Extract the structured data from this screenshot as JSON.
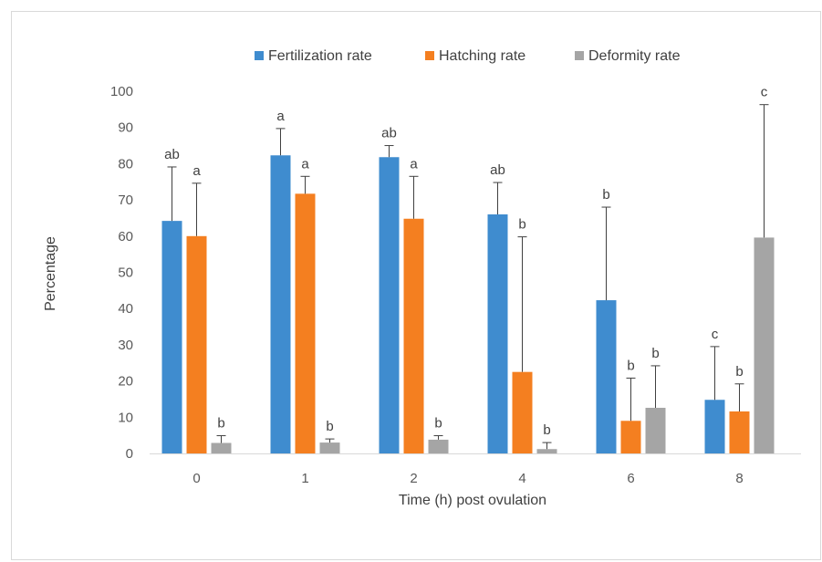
{
  "chart_data": {
    "type": "bar",
    "title": "",
    "xlabel": "Time (h) post ovulation",
    "ylabel": "Percentage",
    "ylim": [
      0,
      100
    ],
    "yticks": [
      "0",
      "10",
      "20",
      "30",
      "40",
      "50",
      "60",
      "70",
      "80",
      "90",
      "100"
    ],
    "categories": [
      "0",
      "1",
      "2",
      "4",
      "6",
      "8"
    ],
    "legend_position": "top",
    "grid": false,
    "series": [
      {
        "name": "Fertilization rate",
        "color": "#3f8ccf",
        "values": [
          64.2,
          82.3,
          81.8,
          66.0,
          42.3,
          14.8
        ],
        "error_upper": [
          79.1,
          89.7,
          85.0,
          74.8,
          68.0,
          29.5
        ],
        "letters": [
          "ab",
          "a",
          "ab",
          "ab",
          "b",
          "c"
        ]
      },
      {
        "name": "Hatching rate",
        "color": "#f47f20",
        "values": [
          60.0,
          71.7,
          64.8,
          22.5,
          9.0,
          11.6
        ],
        "error_upper": [
          74.6,
          76.5,
          76.5,
          59.8,
          20.8,
          19.2
        ],
        "letters": [
          "a",
          "a",
          "a",
          "b",
          "b",
          "b"
        ]
      },
      {
        "name": "Deformity rate",
        "color": "#a5a5a5",
        "values": [
          2.9,
          3.0,
          3.8,
          1.2,
          12.6,
          59.6
        ],
        "error_upper": [
          4.9,
          4.0,
          4.9,
          3.0,
          24.2,
          96.3
        ],
        "letters": [
          "b",
          "b",
          "b",
          "b",
          "b",
          "c"
        ]
      }
    ]
  }
}
